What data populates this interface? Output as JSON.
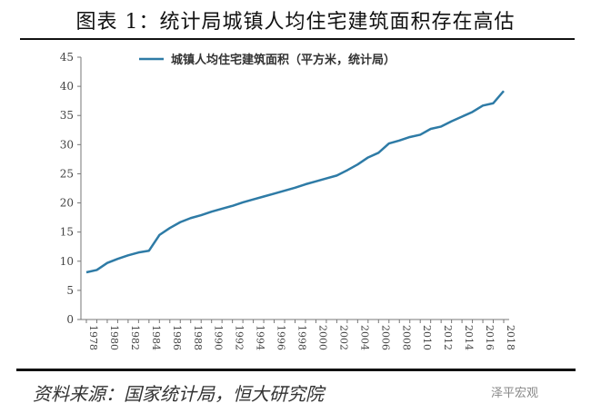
{
  "title": "图表 1：统计局城镇人均住宅建筑面积存在高估",
  "source": "资料来源：国家统计局，恒大研究院",
  "watermark": "泽平宏观",
  "chart_data": {
    "type": "line",
    "title": "",
    "xlabel": "",
    "ylabel": "",
    "ylim": [
      0,
      45
    ],
    "yticks": [
      0,
      5,
      10,
      15,
      20,
      25,
      30,
      35,
      40,
      45
    ],
    "xticks": [
      "1978",
      "1980",
      "1982",
      "1984",
      "1986",
      "1988",
      "1990",
      "1992",
      "1994",
      "1996",
      "1998",
      "2000",
      "2002",
      "2004",
      "2006",
      "2008",
      "2010",
      "2012",
      "2014",
      "2016",
      "2018"
    ],
    "legend_position": "top",
    "grid": false,
    "line_color": "#2e7ba6",
    "x": [
      1978,
      1979,
      1980,
      1981,
      1982,
      1983,
      1984,
      1985,
      1986,
      1987,
      1988,
      1989,
      1990,
      1991,
      1992,
      1993,
      1994,
      1995,
      1996,
      1997,
      1998,
      1999,
      2000,
      2001,
      2002,
      2003,
      2004,
      2005,
      2006,
      2007,
      2008,
      2009,
      2010,
      2011,
      2012,
      2013,
      2014,
      2015,
      2016,
      2017,
      2018
    ],
    "series": [
      {
        "name": "城镇人均住宅建筑面积（平方米，统计局）",
        "values": [
          8.1,
          8.5,
          9.7,
          10.4,
          11.0,
          11.5,
          11.8,
          14.5,
          15.7,
          16.7,
          17.4,
          17.9,
          18.5,
          19.0,
          19.5,
          20.1,
          20.6,
          21.1,
          21.6,
          22.1,
          22.6,
          23.2,
          23.7,
          24.2,
          24.7,
          25.6,
          26.6,
          27.8,
          28.6,
          30.2,
          30.7,
          31.3,
          31.7,
          32.7,
          33.1,
          34.0,
          34.8,
          35.6,
          36.7,
          37.1,
          39.2
        ]
      }
    ]
  }
}
